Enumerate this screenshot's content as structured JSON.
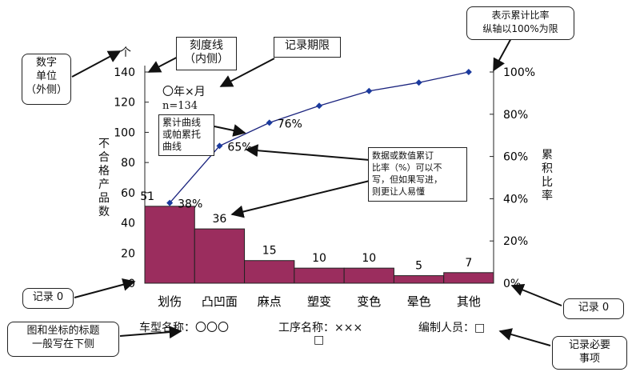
{
  "chart_data": {
    "type": "bar",
    "categories": [
      "划伤",
      "凸凹面",
      "麻点",
      "塑变",
      "变色",
      "晕色",
      "其他"
    ],
    "values": [
      51,
      36,
      15,
      10,
      10,
      5,
      7
    ],
    "cumulative_percent": [
      38,
      65,
      76,
      84,
      91,
      95,
      100
    ],
    "cumulative_labels": [
      "38%",
      "65%",
      "76%"
    ],
    "ylim": [
      0,
      140
    ],
    "y2lim": [
      0,
      100
    ],
    "yticks": [
      "0",
      "20",
      "40",
      "60",
      "80",
      "100",
      "120",
      "140"
    ],
    "y2ticks": [
      "0%",
      "20%",
      "40%",
      "60%",
      "80%",
      "100%"
    ],
    "y_unit": "个",
    "ylabel": "不合格产品数",
    "y2label": "累积比率",
    "period": "〇年×月",
    "n_label": "n=134",
    "bar_color": "#9b2d5e",
    "line_color": "#1a237e",
    "marker_color": "#1a3a9e"
  },
  "footer": {
    "car_model": "车型名称：〇〇〇",
    "process": "工序名称：×××",
    "editor": "编制人员：□",
    "square": "□"
  },
  "callouts": {
    "digit_unit": "数字\n单位\n（外侧）",
    "tick_inside": "刻度线\n（内侧）",
    "record_period": "记录期限",
    "cum_axis": "表示累计比率\n纵轴以100%为限",
    "cum_curve": "累计曲线\n或帕累托\n曲线",
    "data_note": "数据或数值累订\n比率（%）可以不\n写，但如果写进，\n则更让人易懂",
    "record_zero_left": "记录 0",
    "record_zero_right": "记录 0",
    "title_below": "图和坐标的标题\n一般写在下侧",
    "required_items": "记录必要\n事项"
  }
}
